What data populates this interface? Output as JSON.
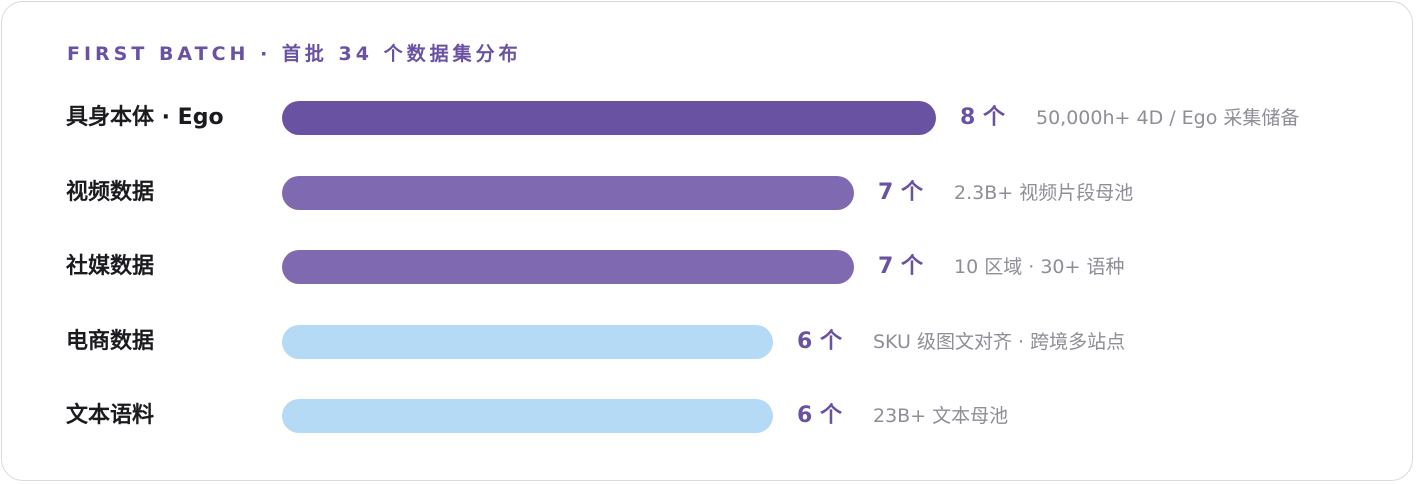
{
  "title": "FIRST BATCH · 首批 34 个数据集分布",
  "colors": {
    "title": "#6a52a3",
    "label": "#1b1b1f",
    "count": "#6a52a3",
    "note": "#8e8e99"
  },
  "chart_data": {
    "type": "bar",
    "orientation": "horizontal",
    "title": "FIRST BATCH · 首批 34 个数据集分布",
    "xlim": [
      0,
      8
    ],
    "grid": false,
    "legend": "none",
    "categories": [
      "具身本体 · Ego",
      "视频数据",
      "社媒数据",
      "电商数据",
      "文本语料"
    ],
    "values": [
      8,
      7,
      7,
      6,
      6
    ],
    "value_labels": [
      "8 个",
      "7 个",
      "7 个",
      "6 个",
      "6 个"
    ],
    "annotations": [
      "50,000h+ 4D / Ego 采集储备",
      "2.3B+ 视频片段母池",
      "10 区域 · 30+ 语种",
      "SKU 级图文对齐 · 跨境多站点",
      "23B+ 文本母池"
    ],
    "bar_colors": [
      "#6a52a3",
      "#7f69b1",
      "#7f69b1",
      "#b5daf6",
      "#b5daf6"
    ]
  }
}
